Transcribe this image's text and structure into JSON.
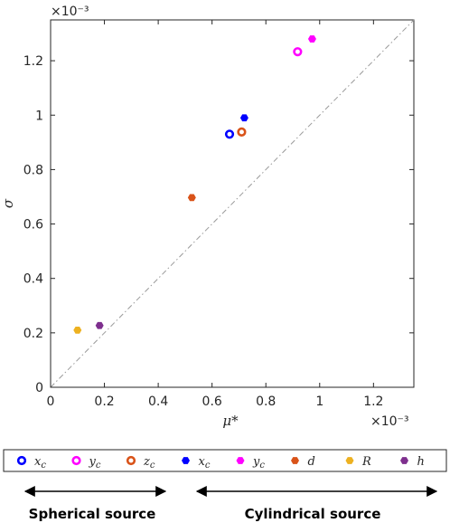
{
  "chart_data": {
    "type": "scatter",
    "xlabel": "μ*",
    "ylabel": "σ",
    "x_exponent": "×10⁻³",
    "y_exponent": "×10⁻³",
    "xlim": [
      0,
      1.35
    ],
    "ylim": [
      0,
      1.35
    ],
    "xticks": [
      0,
      0.2,
      0.4,
      0.6,
      0.8,
      1,
      1.2
    ],
    "yticks": [
      0,
      0.2,
      0.4,
      0.6,
      0.8,
      1,
      1.2
    ],
    "xtick_labels": [
      "0",
      "0.2",
      "0.4",
      "0.6",
      "0.8",
      "1",
      "1.2"
    ],
    "ytick_labels": [
      "0",
      "0.2",
      "0.4",
      "0.6",
      "0.8",
      "1",
      "1.2"
    ],
    "reference_line": "y = x (dash-dot)",
    "grid": false,
    "series": [
      {
        "name": "x_c",
        "group": "spherical",
        "marker": "open-circle",
        "color": "#0000ff",
        "x": 0.665,
        "y": 0.93
      },
      {
        "name": "y_c",
        "group": "spherical",
        "marker": "open-circle",
        "color": "#ff00ff",
        "x": 0.918,
        "y": 1.233
      },
      {
        "name": "z_c",
        "group": "spherical",
        "marker": "open-circle",
        "color": "#d95319",
        "x": 0.71,
        "y": 0.938
      },
      {
        "name": "x_c",
        "group": "cylindrical",
        "marker": "filled-hexagon",
        "color": "#0000ff",
        "x": 0.72,
        "y": 0.99
      },
      {
        "name": "y_c",
        "group": "cylindrical",
        "marker": "filled-hexagon",
        "color": "#ff00ff",
        "x": 0.972,
        "y": 1.28
      },
      {
        "name": "d",
        "group": "cylindrical",
        "marker": "filled-hexagon",
        "color": "#d95319",
        "x": 0.525,
        "y": 0.697
      },
      {
        "name": "R",
        "group": "cylindrical",
        "marker": "filled-hexagon",
        "color": "#edb120",
        "x": 0.1,
        "y": 0.21
      },
      {
        "name": "h",
        "group": "cylindrical",
        "marker": "filled-hexagon",
        "color": "#7e2f8e",
        "x": 0.182,
        "y": 0.227
      }
    ],
    "legend": {
      "placement": "bottom",
      "entries": [
        {
          "base": "x",
          "sub": "c"
        },
        {
          "base": "y",
          "sub": "c"
        },
        {
          "base": "z",
          "sub": "c"
        },
        {
          "base": "x",
          "sub": "c"
        },
        {
          "base": "y",
          "sub": "c"
        },
        {
          "base": "d",
          "sub": ""
        },
        {
          "base": "R",
          "sub": ""
        },
        {
          "base": "h",
          "sub": ""
        }
      ]
    },
    "groups": [
      {
        "label": "Spherical source"
      },
      {
        "label": "Cylindrical source"
      }
    ]
  }
}
